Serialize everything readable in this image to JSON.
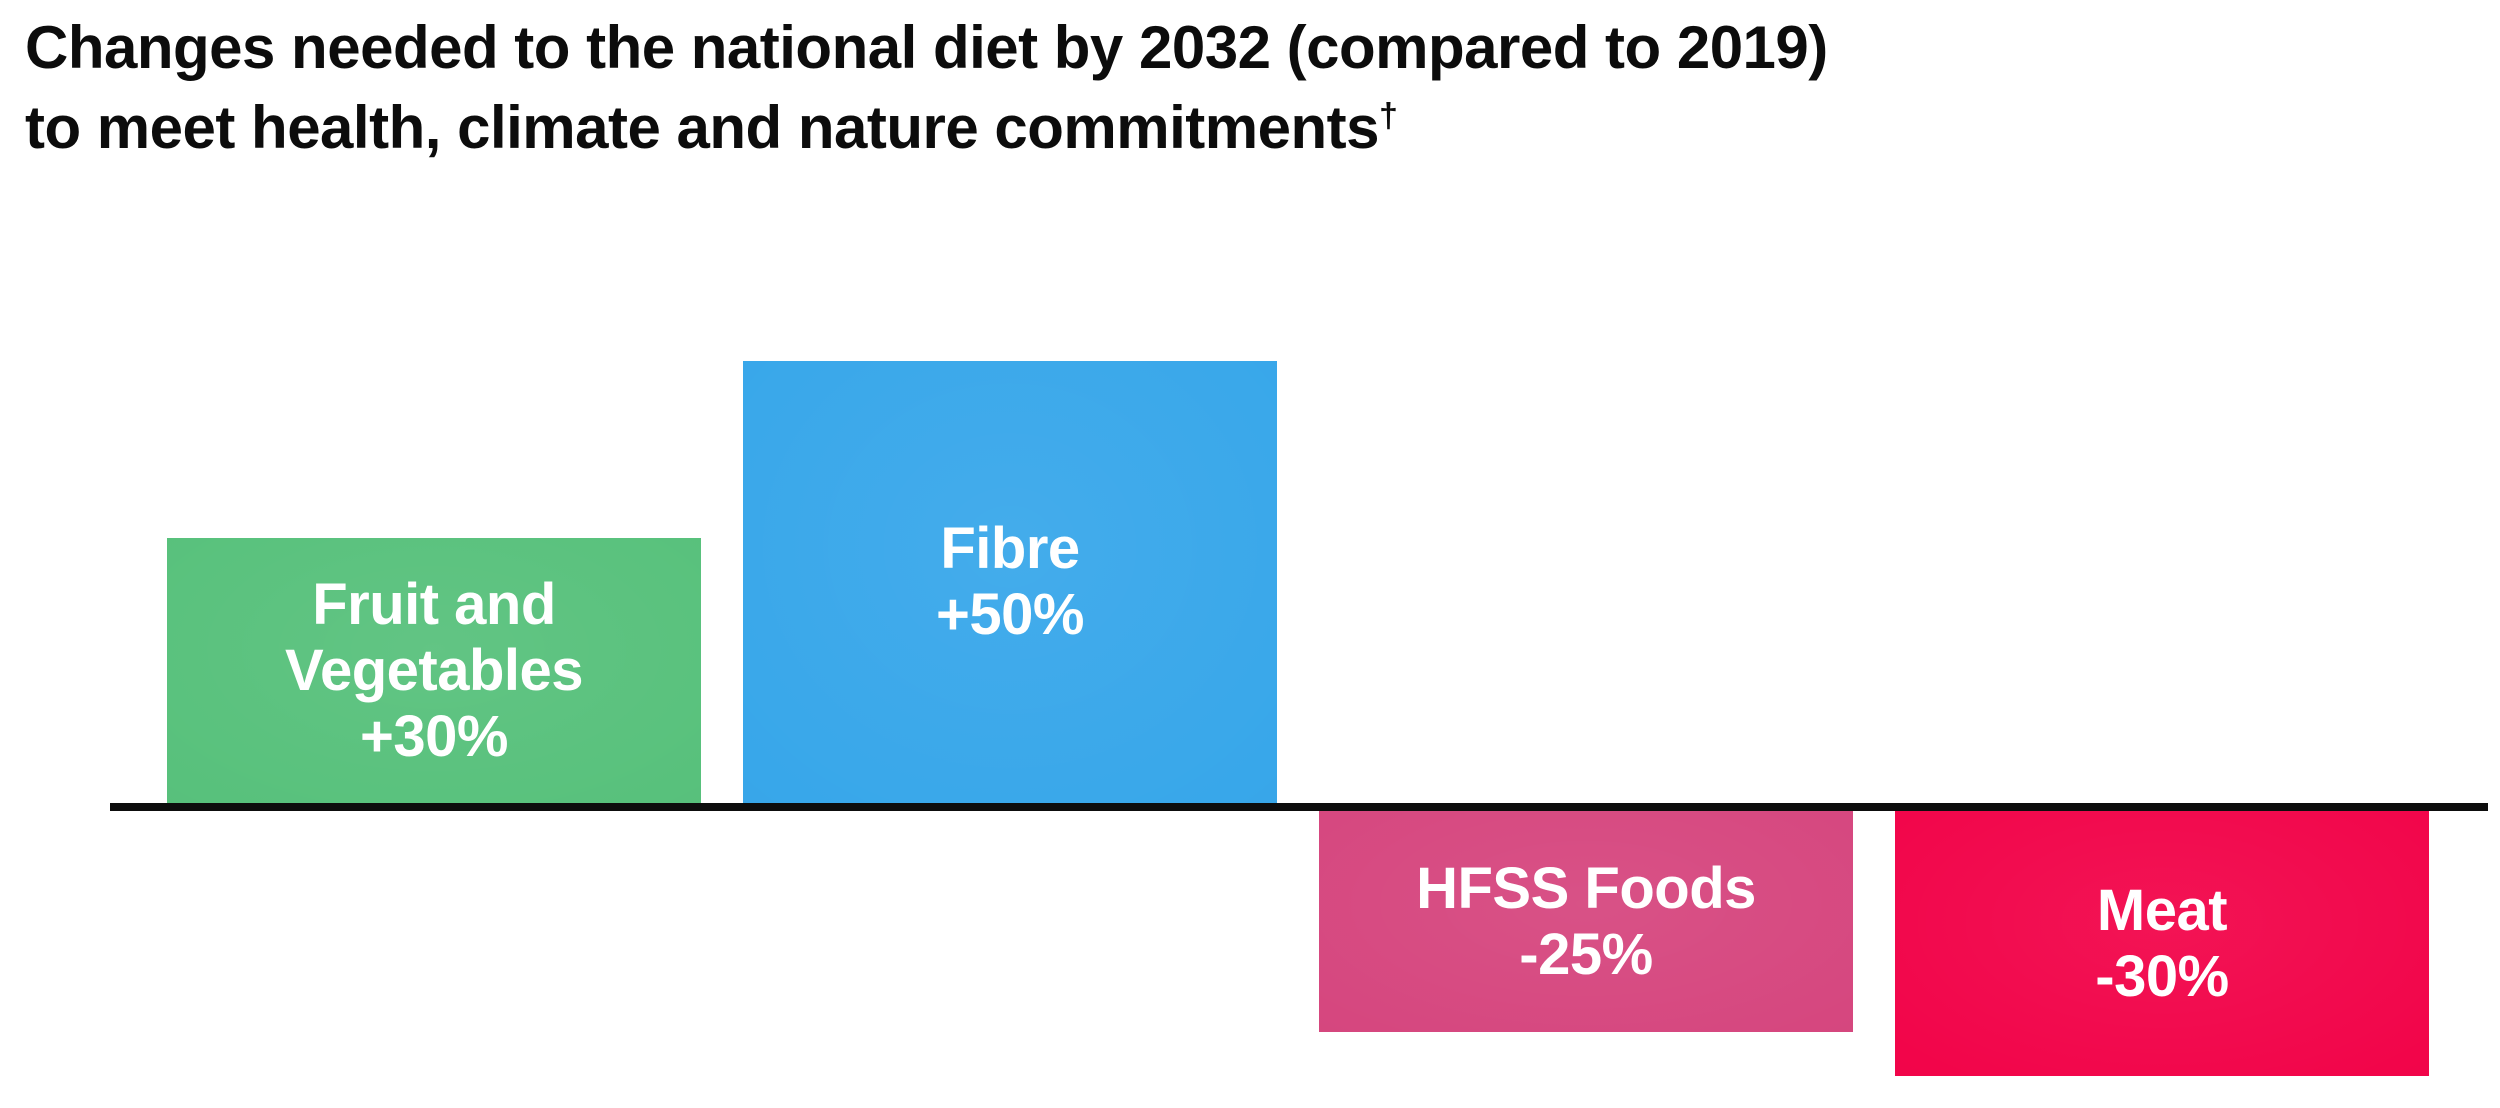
{
  "title": {
    "line1": "Changes needed to the national diet by 2032 (compared to 2019)",
    "line2": "to meet health, climate and nature commitments",
    "footnote_marker": "†"
  },
  "chart_data": {
    "type": "bar",
    "title": "Changes needed to the national diet by 2032 (compared to 2019) to meet health, climate and nature commitments†",
    "categories": [
      "Fruit and Vegetables",
      "Fibre",
      "HFSS Foods",
      "Meat"
    ],
    "values": [
      30,
      50,
      -25,
      -30
    ],
    "value_labels": [
      "+30%",
      "+50%",
      "-25%",
      "-30%"
    ],
    "xlabel": "",
    "ylabel": "",
    "ylim": [
      -30,
      50
    ],
    "baseline": 0,
    "grid": false,
    "legend": "none",
    "axes_shown": false,
    "bar_colors": [
      "#58c17c",
      "#38a7ea",
      "#d6477f",
      "#f2054a"
    ],
    "baseline_color": "#0d0d0d"
  },
  "bars": [
    {
      "line1": "Fruit and",
      "line2": "Vegetables",
      "value_label": "+30%",
      "color": "#58c17c"
    },
    {
      "line1": "Fibre",
      "value_label": "+50%",
      "color": "#38a7ea"
    },
    {
      "line1": "HFSS Foods",
      "value_label": "-25%",
      "color": "#d6477f"
    },
    {
      "line1": "Meat",
      "value_label": "-30%",
      "color": "#f2054a"
    }
  ],
  "colors": {
    "background": "#ffffff",
    "title_text": "#0c0c0c",
    "bar_label_text": "#ffffff"
  }
}
